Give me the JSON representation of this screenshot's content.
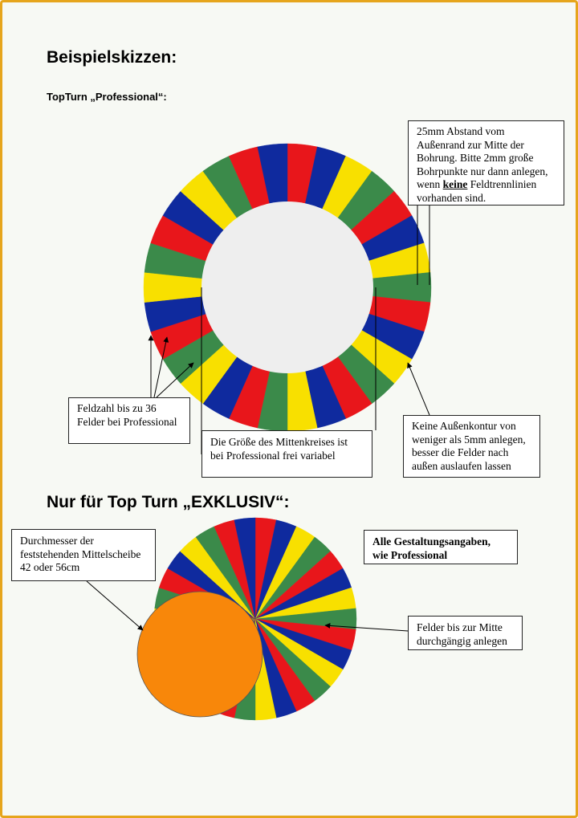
{
  "headings": {
    "beispiel": "Beispielskizzen:",
    "professional": "TopTurn  „Professional“:",
    "exklusiv": "Nur für Top Turn „EXKLUSIV“:"
  },
  "colors": {
    "red": "#e8161b",
    "blue": "#0f2a9e",
    "yellow": "#f8e000",
    "green": "#3b8a4a",
    "orange": "#f8870a",
    "center": "#eeeeee",
    "frame": "#e6a51c"
  },
  "wheel_professional": {
    "segment_count": 30,
    "center_circle": "variable"
  },
  "wheel_exklusiv": {
    "segment_count": 30
  },
  "annotations": {
    "bohrung": {
      "line1": "25mm Abstand vom",
      "line2": "Außenrand zur Mitte der",
      "line3": "Bohrung. Bitte 2mm große",
      "line4": "Bohrpunkte nur dann anlegen,",
      "line5_pre": "wenn ",
      "line5_bold": "keine",
      "line5_post": " Feldtrennlinien",
      "line6": "vorhanden sind."
    },
    "feldzahl": {
      "line1": "Feldzahl bis zu 36",
      "line2": "Felder bei Professional"
    },
    "mittenkreis": {
      "line1": "Die Größe des Mittenkreises ist",
      "line2": "bei Professional frei variabel"
    },
    "aussenkontur": {
      "line1": "Keine Außenkontur von",
      "line2": "weniger als 5mm anlegen,",
      "line3": "besser die Felder nach",
      "line4": "außen auslaufen lassen"
    },
    "durchmesser": {
      "line1": "Durchmesser der",
      "line2": "feststehenden Mittelscheibe",
      "line3": "42 oder 56cm"
    },
    "gestaltung": {
      "line1": "Alle Gestaltungsangaben,",
      "line2": "wie Professional"
    },
    "felder_mitte": {
      "line1": "Felder bis zur Mitte",
      "line2": "durchgängig anlegen"
    }
  }
}
